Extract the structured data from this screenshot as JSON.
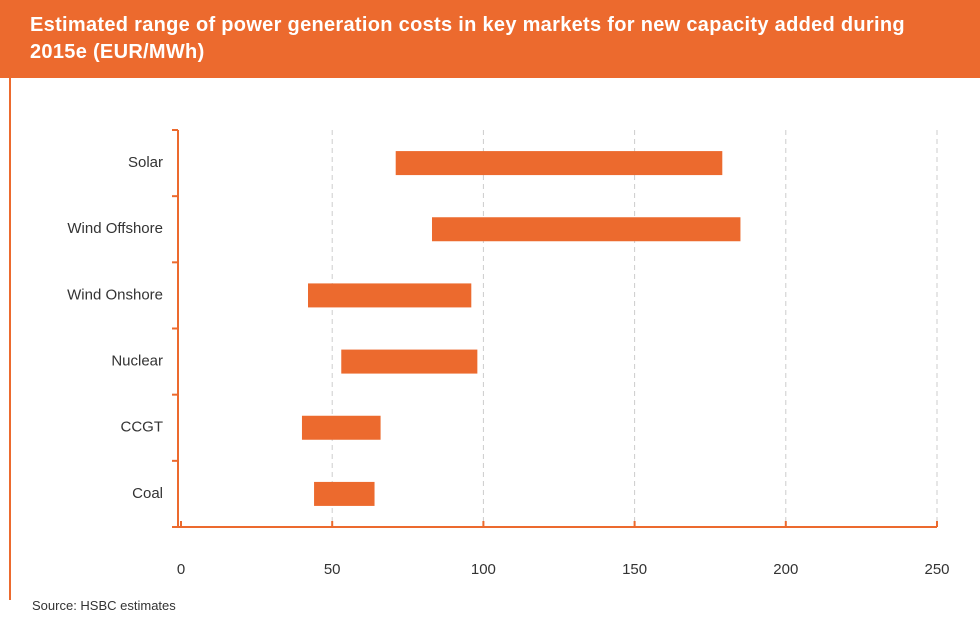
{
  "chart_data": {
    "type": "range-bar",
    "title": "Estimated range of power generation costs in key markets for new capacity added during 2015e (EUR/MWh)",
    "categories": [
      "Solar",
      "Wind Offshore",
      "Wind Onshore",
      "Nuclear",
      "CCGT",
      "Coal"
    ],
    "low": [
      71,
      83,
      42,
      53,
      40,
      44
    ],
    "high": [
      179,
      185,
      96,
      98,
      66,
      64
    ],
    "color": "#ec6a2e",
    "xlim": [
      0,
      250
    ],
    "xticks": [
      0,
      50,
      100,
      150,
      200,
      250
    ],
    "grid": true,
    "source": "Source: HSBC estimates"
  }
}
